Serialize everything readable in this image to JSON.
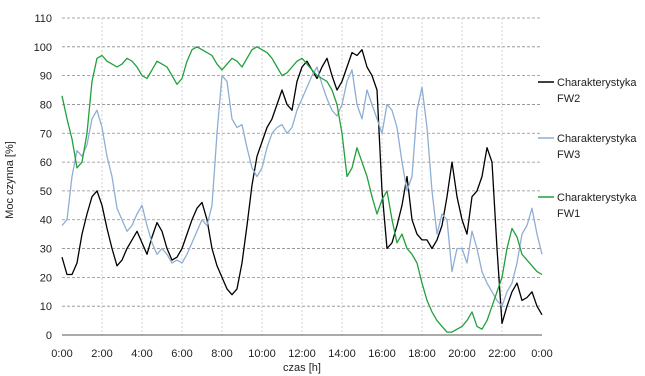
{
  "chart_data": {
    "type": "line",
    "xlabel": "czas [h]",
    "ylabel": "Moc czynna [%]",
    "ylim": [
      0,
      110
    ],
    "xlim": [
      0,
      24
    ],
    "y_ticks": [
      "0",
      "10",
      "20",
      "30",
      "40",
      "50",
      "60",
      "70",
      "80",
      "90",
      "100",
      "110"
    ],
    "x_ticks": [
      "0:00",
      "2:00",
      "4:00",
      "6:00",
      "8:00",
      "10:00",
      "12:00",
      "14:00",
      "16:00",
      "18:00",
      "20:00",
      "22:00",
      "0:00"
    ],
    "grid": "dashed",
    "legend_position": "right",
    "series": [
      {
        "name": "Charakterystyka FW2",
        "color": "#000000",
        "x": [
          0,
          0.25,
          0.5,
          0.75,
          1,
          1.25,
          1.5,
          1.75,
          2,
          2.25,
          2.5,
          2.75,
          3,
          3.25,
          3.5,
          3.75,
          4,
          4.25,
          4.5,
          4.75,
          5,
          5.25,
          5.5,
          5.75,
          6,
          6.25,
          6.5,
          6.75,
          7,
          7.25,
          7.5,
          7.75,
          8,
          8.25,
          8.5,
          8.75,
          9,
          9.25,
          9.5,
          9.75,
          10,
          10.25,
          10.5,
          10.75,
          11,
          11.25,
          11.5,
          11.75,
          12,
          12.25,
          12.5,
          12.75,
          13,
          13.25,
          13.5,
          13.75,
          14,
          14.25,
          14.5,
          14.75,
          15,
          15.25,
          15.5,
          15.75,
          16,
          16.25,
          16.5,
          16.75,
          17,
          17.25,
          17.5,
          17.75,
          18,
          18.25,
          18.5,
          18.75,
          19,
          19.25,
          19.5,
          19.75,
          20,
          20.25,
          20.5,
          20.75,
          21,
          21.25,
          21.5,
          21.75,
          22,
          22.25,
          22.5,
          22.75,
          23,
          23.25,
          23.5,
          23.75,
          24
        ],
        "values": [
          27,
          21,
          21,
          25,
          35,
          42,
          48,
          50,
          45,
          37,
          30,
          24,
          26,
          30,
          33,
          36,
          32,
          28,
          34,
          39,
          36,
          30,
          26,
          27,
          30,
          35,
          40,
          44,
          46,
          40,
          30,
          24,
          20,
          16,
          14,
          16,
          25,
          38,
          52,
          62,
          67,
          72,
          75,
          80,
          85,
          80,
          78,
          88,
          93,
          95,
          92,
          89,
          93,
          96,
          90,
          85,
          88,
          93,
          98,
          97,
          99,
          93,
          90,
          85,
          50,
          30,
          32,
          38,
          45,
          55,
          40,
          35,
          33,
          33,
          30,
          33,
          38,
          48,
          60,
          48,
          40,
          35,
          48,
          50,
          55,
          65,
          60,
          30,
          4,
          10,
          15,
          18,
          12,
          13,
          15,
          10,
          7
        ]
      },
      {
        "name": "Charakterystyka FW3",
        "color": "#8faed2",
        "x": [
          0,
          0.25,
          0.5,
          0.75,
          1,
          1.25,
          1.5,
          1.75,
          2,
          2.25,
          2.5,
          2.75,
          3,
          3.25,
          3.5,
          3.75,
          4,
          4.25,
          4.5,
          4.75,
          5,
          5.25,
          5.5,
          5.75,
          6,
          6.25,
          6.5,
          6.75,
          7,
          7.25,
          7.5,
          7.75,
          8,
          8.25,
          8.5,
          8.75,
          9,
          9.25,
          9.5,
          9.75,
          10,
          10.25,
          10.5,
          10.75,
          11,
          11.25,
          11.5,
          11.75,
          12,
          12.25,
          12.5,
          12.75,
          13,
          13.25,
          13.5,
          13.75,
          14,
          14.25,
          14.5,
          14.75,
          15,
          15.25,
          15.5,
          15.75,
          16,
          16.25,
          16.5,
          16.75,
          17,
          17.25,
          17.5,
          17.75,
          18,
          18.25,
          18.5,
          18.75,
          19,
          19.25,
          19.5,
          19.75,
          20,
          20.25,
          20.5,
          20.75,
          21,
          21.25,
          21.5,
          21.75,
          22,
          22.25,
          22.5,
          22.75,
          23,
          23.25,
          23.5,
          23.75,
          24
        ],
        "values": [
          38,
          40,
          55,
          64,
          62,
          66,
          75,
          78,
          72,
          62,
          55,
          44,
          40,
          36,
          38,
          42,
          45,
          38,
          32,
          28,
          30,
          28,
          25,
          26,
          25,
          28,
          32,
          36,
          40,
          38,
          45,
          70,
          90,
          88,
          75,
          72,
          73,
          65,
          58,
          55,
          58,
          65,
          70,
          72,
          73,
          70,
          72,
          78,
          82,
          86,
          90,
          93,
          87,
          82,
          78,
          76,
          80,
          88,
          92,
          80,
          75,
          85,
          80,
          75,
          70,
          80,
          78,
          72,
          60,
          50,
          55,
          78,
          86,
          72,
          50,
          35,
          42,
          40,
          22,
          30,
          30,
          25,
          36,
          30,
          22,
          18,
          15,
          12,
          10,
          15,
          18,
          25,
          35,
          38,
          44,
          35,
          28
        ]
      },
      {
        "name": "Charakterystyka FW1",
        "color": "#22a03c",
        "x": [
          0,
          0.25,
          0.5,
          0.75,
          1,
          1.25,
          1.5,
          1.75,
          2,
          2.25,
          2.5,
          2.75,
          3,
          3.25,
          3.5,
          3.75,
          4,
          4.25,
          4.5,
          4.75,
          5,
          5.25,
          5.5,
          5.75,
          6,
          6.25,
          6.5,
          6.75,
          7,
          7.25,
          7.5,
          7.75,
          8,
          8.25,
          8.5,
          8.75,
          9,
          9.25,
          9.5,
          9.75,
          10,
          10.25,
          10.5,
          10.75,
          11,
          11.25,
          11.5,
          11.75,
          12,
          12.25,
          12.5,
          12.75,
          13,
          13.25,
          13.5,
          13.75,
          14,
          14.25,
          14.5,
          14.75,
          15,
          15.25,
          15.5,
          15.75,
          16,
          16.25,
          16.5,
          16.75,
          17,
          17.25,
          17.5,
          17.75,
          18,
          18.25,
          18.5,
          18.75,
          19,
          19.25,
          19.5,
          19.75,
          20,
          20.25,
          20.5,
          20.75,
          21,
          21.25,
          21.5,
          21.75,
          22,
          22.25,
          22.5,
          22.75,
          23,
          23.25,
          23.5,
          23.75,
          24
        ],
        "values": [
          83,
          75,
          68,
          58,
          60,
          70,
          88,
          96,
          97,
          95,
          94,
          93,
          94,
          96,
          95,
          93,
          90,
          89,
          92,
          95,
          94,
          93,
          90,
          87,
          89,
          95,
          99,
          100,
          99,
          98,
          97,
          94,
          92,
          94,
          96,
          95,
          93,
          96,
          99,
          100,
          99,
          98,
          96,
          93,
          90,
          91,
          93,
          95,
          96,
          94,
          92,
          90,
          89,
          88,
          85,
          80,
          70,
          55,
          58,
          65,
          60,
          55,
          48,
          42,
          47,
          50,
          40,
          32,
          35,
          30,
          28,
          25,
          18,
          12,
          8,
          5,
          3,
          1,
          1,
          2,
          3,
          5,
          8,
          3,
          2,
          5,
          10,
          15,
          20,
          30,
          37,
          34,
          28,
          26,
          24,
          22,
          21
        ]
      }
    ]
  }
}
